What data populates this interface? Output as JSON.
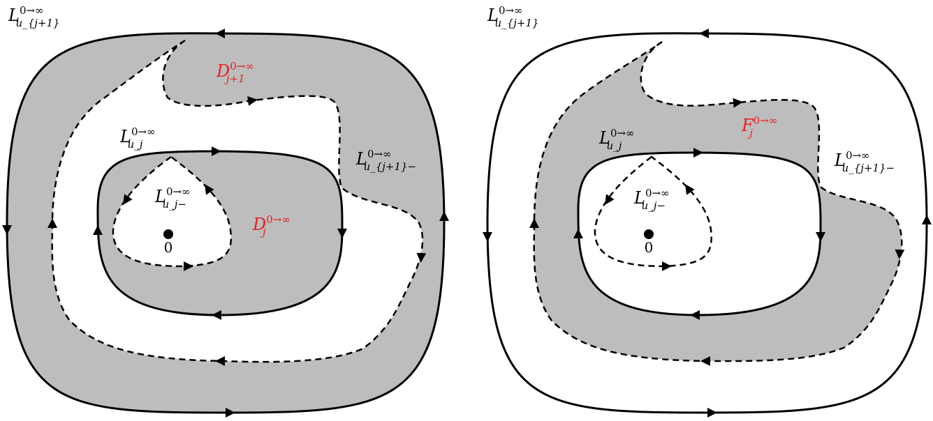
{
  "colors": {
    "shade": "#bdbdbd",
    "stroke": "#000000",
    "region_label": "#e8201e"
  },
  "left_panel": {
    "outer_curve": {
      "base": "L",
      "superscript": "0→∞",
      "subscript": "u_{j+1}"
    },
    "mid_curve": {
      "base": "L",
      "superscript": "0→∞",
      "subscript": "u_{j+1}−"
    },
    "inner_curve": {
      "base": "L",
      "superscript": "0→∞",
      "subscript": "u_j"
    },
    "core_curve": {
      "base": "L",
      "superscript": "0→∞",
      "subscript": "u_j−"
    },
    "region_upper": {
      "base": "D",
      "superscript": "0→∞",
      "subscript": "j+1"
    },
    "region_inner": {
      "base": "D",
      "superscript": "0→∞",
      "subscript": "j"
    },
    "origin": "0"
  },
  "right_panel": {
    "outer_curve": {
      "base": "L",
      "superscript": "0→∞",
      "subscript": "u_{j+1}"
    },
    "mid_curve": {
      "base": "L",
      "superscript": "0→∞",
      "subscript": "u_{j+1}−"
    },
    "inner_curve": {
      "base": "L",
      "superscript": "0→∞",
      "subscript": "u_j"
    },
    "core_curve": {
      "base": "L",
      "superscript": "0→∞",
      "subscript": "u_j−"
    },
    "region": {
      "base": "F",
      "superscript": "0→∞",
      "subscript": "j"
    },
    "origin": "0"
  }
}
